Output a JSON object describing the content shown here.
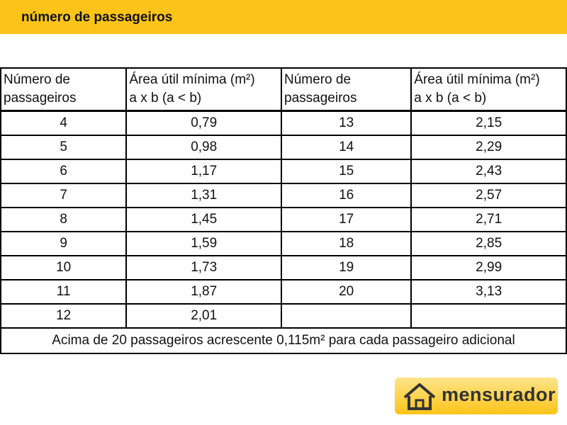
{
  "header": {
    "title": "número de passageiros"
  },
  "table": {
    "headers": [
      [
        "Número de",
        "passageiros"
      ],
      [
        "Área útil mínima (m²)",
        "a x b  (a < b)"
      ],
      [
        "Número de",
        "passageiros"
      ],
      [
        "Área útil mínima (m²)",
        "a x b  (a < b)"
      ]
    ],
    "rows": [
      [
        "4",
        "0,79",
        "13",
        "2,15"
      ],
      [
        "5",
        "0,98",
        "14",
        "2,29"
      ],
      [
        "6",
        "1,17",
        "15",
        "2,43"
      ],
      [
        "7",
        "1,31",
        "16",
        "2,57"
      ],
      [
        "8",
        "1,45",
        "17",
        "2,71"
      ],
      [
        "9",
        "1,59",
        "18",
        "2,85"
      ],
      [
        "10",
        "1,73",
        "19",
        "2,99"
      ],
      [
        "11",
        "1,87",
        "20",
        "3,13"
      ],
      [
        "12",
        "2,01",
        null,
        null
      ]
    ],
    "footer": "Acima de 20 passageiros acrescente 0,115m² para cada passageiro adicional"
  },
  "logo": {
    "text": "mensurador"
  }
}
